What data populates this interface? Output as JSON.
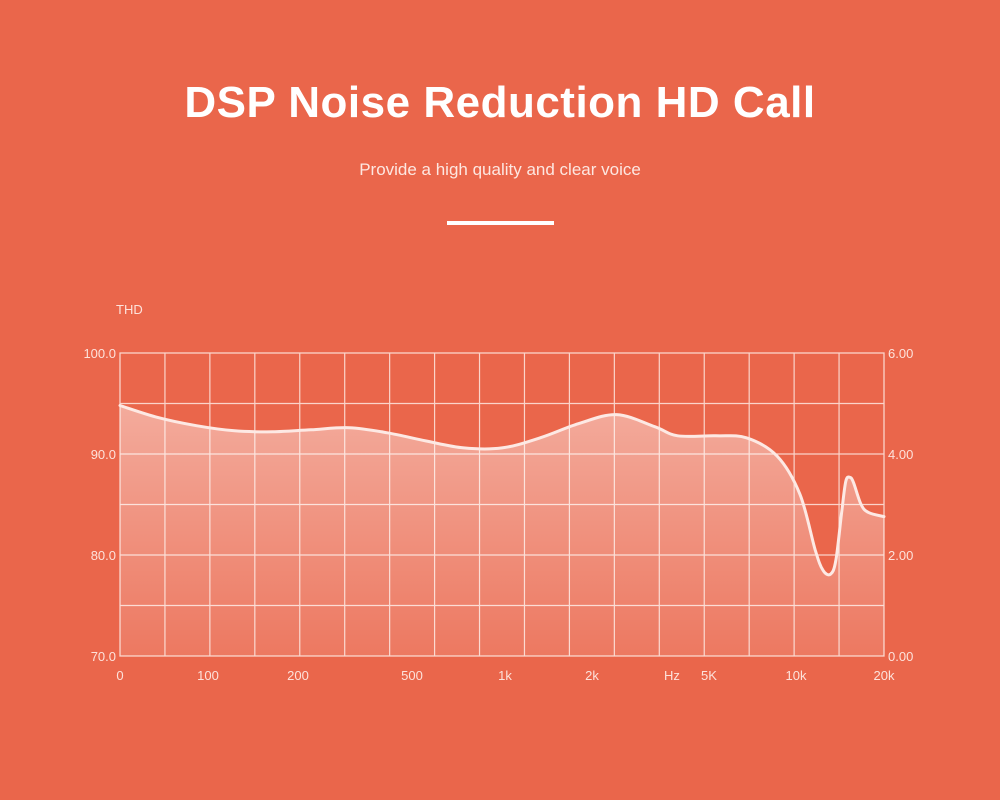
{
  "header": {
    "title": "DSP Noise Reduction HD Call",
    "subtitle": "Provide a high quality and clear voice"
  },
  "colors": {
    "background": "#ea664b",
    "grid": "#fbd4ca",
    "curve": "#fde9e4",
    "fill": "#f4a99a"
  },
  "chart_data": {
    "type": "area",
    "y_left_label": "THD",
    "x_unit_label": "Hz",
    "x_ticks": [
      "0",
      "100",
      "200",
      "500",
      "1k",
      "2k",
      "5K",
      "10k",
      "20k"
    ],
    "y_left_ticks": [
      "100.0",
      "90.0",
      "80.0",
      "70.0"
    ],
    "y_right_ticks": [
      "6.00",
      "4.00",
      "2.00",
      "0.00"
    ],
    "ylim": [
      70,
      100
    ],
    "y_right_lim": [
      0,
      6
    ],
    "x_grid_lines": 17,
    "y_grid_lines": 6,
    "series": [
      {
        "points": [
          [
            0,
            94.8
          ],
          [
            0.5,
            93.6
          ],
          [
            1.0,
            92.8
          ],
          [
            1.5,
            92.3
          ],
          [
            2.0,
            92.2
          ],
          [
            2.5,
            92.4
          ],
          [
            3.0,
            92.6
          ],
          [
            3.5,
            92.1
          ],
          [
            4.0,
            91.3
          ],
          [
            4.5,
            90.6
          ],
          [
            5.0,
            90.6
          ],
          [
            5.5,
            91.6
          ],
          [
            6.0,
            93.0
          ],
          [
            6.5,
            93.9
          ],
          [
            7.0,
            92.7
          ],
          [
            7.3,
            91.8
          ],
          [
            7.8,
            91.8
          ],
          [
            8.2,
            91.6
          ],
          [
            8.6,
            89.8
          ],
          [
            8.9,
            86.0
          ],
          [
            9.1,
            80.5
          ],
          [
            9.2,
            78.5
          ],
          [
            9.3,
            78.1
          ],
          [
            9.37,
            79.5
          ],
          [
            9.45,
            84.5
          ],
          [
            9.5,
            87.3
          ],
          [
            9.55,
            87.7
          ],
          [
            9.6,
            87.2
          ],
          [
            9.7,
            85.0
          ],
          [
            9.8,
            84.2
          ],
          [
            10.0,
            83.8
          ]
        ]
      }
    ]
  }
}
